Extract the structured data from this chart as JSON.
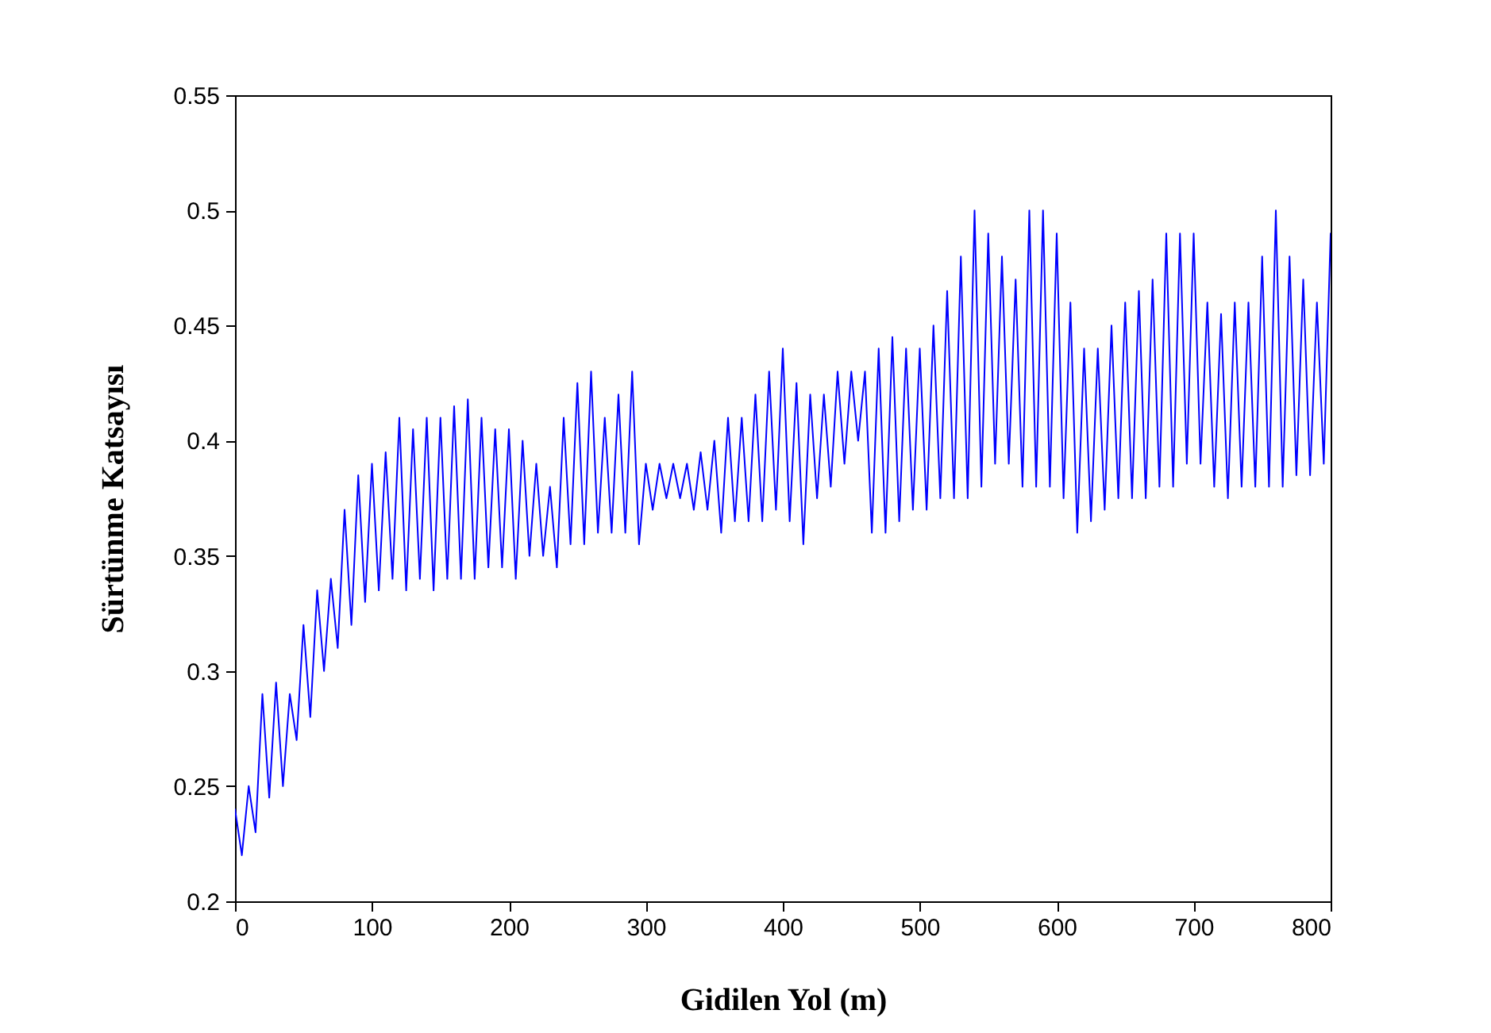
{
  "chart_data": {
    "type": "line",
    "xlabel": "Gidilen Yol (m)",
    "ylabel": "Sürtünme Katsayısı",
    "x": [
      0,
      5,
      10,
      15,
      20,
      25,
      30,
      35,
      40,
      45,
      50,
      55,
      60,
      65,
      70,
      75,
      80,
      85,
      90,
      95,
      100,
      105,
      110,
      115,
      120,
      125,
      130,
      135,
      140,
      145,
      150,
      155,
      160,
      165,
      170,
      175,
      180,
      185,
      190,
      195,
      200,
      205,
      210,
      215,
      220,
      225,
      230,
      235,
      240,
      245,
      250,
      255,
      260,
      265,
      270,
      275,
      280,
      285,
      290,
      295,
      300,
      305,
      310,
      315,
      320,
      325,
      330,
      335,
      340,
      345,
      350,
      355,
      360,
      365,
      370,
      375,
      380,
      385,
      390,
      395,
      400,
      405,
      410,
      415,
      420,
      425,
      430,
      435,
      440,
      445,
      450,
      455,
      460,
      465,
      470,
      475,
      480,
      485,
      490,
      495,
      500,
      505,
      510,
      515,
      520,
      525,
      530,
      535,
      540,
      545,
      550,
      555,
      560,
      565,
      570,
      575,
      580,
      585,
      590,
      595,
      600,
      605,
      610,
      615,
      620,
      625,
      630,
      635,
      640,
      645,
      650,
      655,
      660,
      665,
      670,
      675,
      680,
      685,
      690,
      695,
      700,
      705,
      710,
      715,
      720,
      725,
      730,
      735,
      740,
      745,
      750,
      755,
      760,
      765,
      770,
      775,
      780,
      785,
      790,
      795,
      800
    ],
    "series": [
      {
        "color": "#0000ff",
        "values": [
          0.24,
          0.22,
          0.25,
          0.23,
          0.29,
          0.245,
          0.295,
          0.25,
          0.29,
          0.27,
          0.32,
          0.28,
          0.335,
          0.3,
          0.34,
          0.31,
          0.37,
          0.32,
          0.385,
          0.33,
          0.39,
          0.335,
          0.395,
          0.34,
          0.41,
          0.335,
          0.405,
          0.34,
          0.41,
          0.335,
          0.41,
          0.34,
          0.415,
          0.34,
          0.418,
          0.34,
          0.41,
          0.345,
          0.405,
          0.345,
          0.405,
          0.34,
          0.4,
          0.35,
          0.39,
          0.35,
          0.38,
          0.345,
          0.41,
          0.355,
          0.425,
          0.355,
          0.43,
          0.36,
          0.41,
          0.36,
          0.42,
          0.36,
          0.43,
          0.355,
          0.39,
          0.37,
          0.39,
          0.375,
          0.39,
          0.375,
          0.39,
          0.37,
          0.395,
          0.37,
          0.4,
          0.36,
          0.41,
          0.365,
          0.41,
          0.365,
          0.42,
          0.365,
          0.43,
          0.37,
          0.44,
          0.365,
          0.425,
          0.355,
          0.42,
          0.375,
          0.42,
          0.38,
          0.43,
          0.39,
          0.43,
          0.4,
          0.43,
          0.36,
          0.44,
          0.36,
          0.445,
          0.365,
          0.44,
          0.37,
          0.44,
          0.37,
          0.45,
          0.375,
          0.465,
          0.375,
          0.48,
          0.375,
          0.5,
          0.38,
          0.49,
          0.39,
          0.48,
          0.39,
          0.47,
          0.38,
          0.5,
          0.38,
          0.5,
          0.38,
          0.49,
          0.375,
          0.46,
          0.36,
          0.44,
          0.365,
          0.44,
          0.37,
          0.45,
          0.375,
          0.46,
          0.375,
          0.465,
          0.375,
          0.47,
          0.38,
          0.49,
          0.38,
          0.49,
          0.39,
          0.49,
          0.39,
          0.46,
          0.38,
          0.455,
          0.375,
          0.46,
          0.38,
          0.46,
          0.38,
          0.48,
          0.38,
          0.5,
          0.38,
          0.48,
          0.385,
          0.47,
          0.385,
          0.46,
          0.39,
          0.49
        ]
      }
    ],
    "xlim": [
      0,
      800
    ],
    "xticks": [
      0,
      100,
      200,
      300,
      400,
      500,
      600,
      700,
      800
    ],
    "ylim": [
      0.2,
      0.55
    ],
    "yticks": [
      0.2,
      0.25,
      0.3,
      0.35,
      0.4,
      0.45,
      0.5,
      0.55
    ],
    "grid": false,
    "marker": "none",
    "line_style": "solid"
  }
}
